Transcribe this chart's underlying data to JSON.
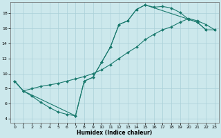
{
  "xlabel": "Humidex (Indice chaleur)",
  "bg_color": "#cce8ec",
  "grid_color": "#aad0d8",
  "line_color": "#1a7a6e",
  "xlim": [
    -0.5,
    23.5
  ],
  "ylim": [
    3.5,
    19.5
  ],
  "xticks": [
    0,
    1,
    2,
    3,
    4,
    5,
    6,
    7,
    8,
    9,
    10,
    11,
    12,
    13,
    14,
    15,
    16,
    17,
    18,
    19,
    20,
    21,
    22,
    23
  ],
  "yticks": [
    4,
    6,
    8,
    10,
    12,
    14,
    16,
    18
  ],
  "series1_x": [
    0,
    1,
    2,
    3,
    4,
    5,
    6,
    7,
    8,
    9,
    10,
    11,
    12,
    13,
    14,
    15,
    16,
    17,
    18,
    19,
    20,
    21,
    22
  ],
  "series1_y": [
    9.0,
    7.7,
    7.0,
    6.2,
    5.5,
    4.9,
    4.6,
    4.4,
    9.0,
    9.5,
    11.5,
    13.5,
    16.5,
    17.0,
    18.5,
    19.1,
    18.8,
    18.9,
    18.7,
    18.1,
    17.2,
    16.8,
    15.8
  ],
  "series2_x": [
    0,
    1,
    2,
    3,
    4,
    5,
    6,
    7,
    8,
    9,
    10,
    11,
    12,
    13,
    14,
    15,
    16,
    17,
    18,
    19,
    20,
    21,
    22,
    23
  ],
  "series2_y": [
    9.0,
    7.7,
    8.0,
    8.3,
    8.5,
    8.7,
    9.0,
    9.3,
    9.6,
    10.0,
    10.5,
    11.2,
    12.0,
    12.8,
    13.5,
    14.5,
    15.2,
    15.8,
    16.2,
    16.8,
    17.3,
    17.0,
    16.5,
    15.8
  ],
  "series3_x": [
    0,
    1,
    7,
    8,
    9,
    10,
    11,
    12,
    13,
    14,
    15,
    20,
    21,
    22,
    23
  ],
  "series3_y": [
    9.0,
    7.7,
    4.4,
    9.0,
    9.5,
    11.5,
    13.5,
    16.5,
    17.0,
    18.5,
    19.1,
    17.2,
    16.8,
    15.8,
    15.8
  ]
}
